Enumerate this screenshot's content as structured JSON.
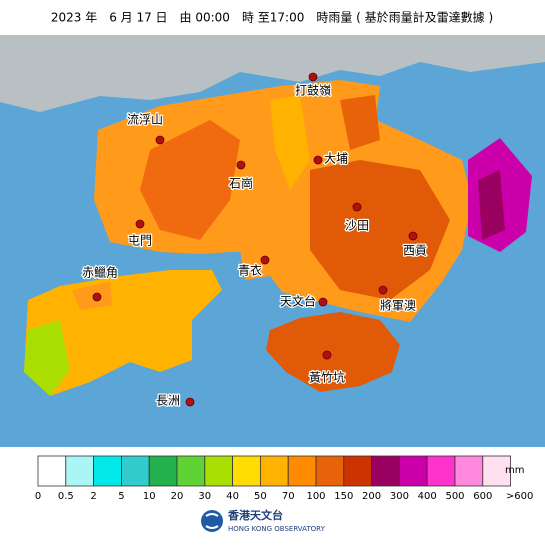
{
  "title": "2023 年　6 月 17 日　由 00:00　時 至17:00　時雨量 ( 基於雨量計及雷達數據 )",
  "places": [
    "打鼓嶺",
    "流浮山",
    "石崗",
    "大埔",
    "沙田",
    "屯門",
    "西貢",
    "青衣",
    "赤鱲角",
    "天文台",
    "將軍澳",
    "黃竹坑",
    "長洲"
  ],
  "legend": {
    "unit": "mm",
    "colors": [
      "#ffffff",
      "#aaf5f5",
      "#00e8e8",
      "#33cccc",
      "#22b14c",
      "#5fd235",
      "#aadd00",
      "#ffdd00",
      "#ffb300",
      "#ff8c00",
      "#e8620a",
      "#cc3300",
      "#99005f",
      "#cc00aa",
      "#ff33cc",
      "#ff88dd",
      "#ffe0f0"
    ],
    "labels": [
      "0",
      "0.5",
      "2",
      "5",
      "10",
      "20",
      "30",
      "40",
      "50",
      "70",
      "100",
      "150",
      "200",
      "300",
      "400",
      "500",
      "600",
      ">600"
    ]
  },
  "logo": {
    "name": "香港天文台",
    "name_en": "HONG KONG OBSERVATORY"
  }
}
